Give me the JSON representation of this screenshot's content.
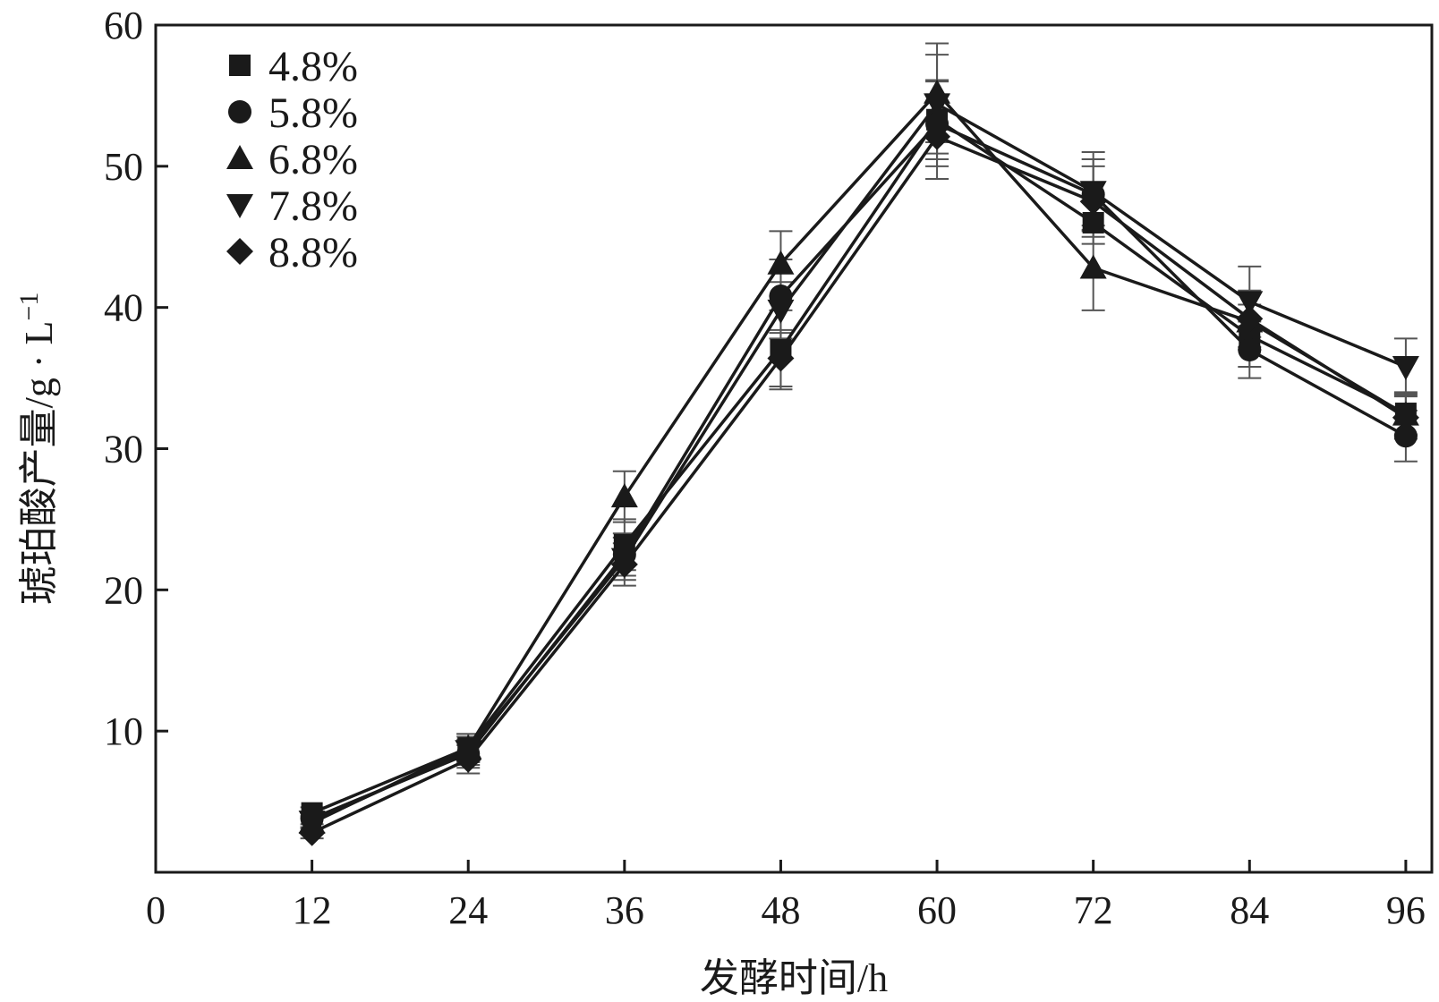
{
  "chart_data": {
    "type": "line",
    "title": "",
    "xlabel": "发酵时间/h",
    "ylabel": "琥珀酸产量/g · L",
    "ylabel_superscript": "−1",
    "x_tick_labels": [
      "0",
      "12",
      "24",
      "36",
      "48",
      "60",
      "72",
      "84",
      "96"
    ],
    "y_tick_labels": [
      "10",
      "20",
      "30",
      "40",
      "50",
      "60"
    ],
    "xlim": [
      0,
      98
    ],
    "ylim": [
      0,
      60
    ],
    "grid": false,
    "legend_position": "top-left",
    "x": [
      12,
      24,
      36,
      48,
      60,
      72,
      84,
      96
    ],
    "series": [
      {
        "name": "4.8%",
        "marker": "square",
        "values": [
          4.2,
          8.8,
          23.2,
          37.0,
          53.3,
          46.0,
          38.0,
          32.5
        ],
        "errors": [
          0.4,
          1.0,
          1.8,
          2.8,
          2.8,
          1.5,
          2.2,
          1.5
        ]
      },
      {
        "name": "5.8%",
        "marker": "circle",
        "values": [
          3.8,
          8.4,
          22.5,
          40.8,
          53.0,
          48.0,
          37.0,
          30.9
        ],
        "errors": [
          0.4,
          1.0,
          1.5,
          2.6,
          3.0,
          2.5,
          2.0,
          1.8
        ]
      },
      {
        "name": "6.8%",
        "marker": "triangle-up",
        "values": [
          3.5,
          8.8,
          26.6,
          43.1,
          55.2,
          42.8,
          39.0,
          32.4
        ],
        "errors": [
          0.4,
          1.0,
          1.8,
          2.3,
          3.5,
          3.0,
          2.0,
          1.5
        ]
      },
      {
        "name": "7.8%",
        "marker": "triangle-down",
        "values": [
          3.6,
          8.6,
          22.2,
          39.8,
          54.4,
          48.2,
          40.4,
          35.8
        ],
        "errors": [
          0.4,
          1.0,
          1.5,
          2.0,
          3.5,
          2.8,
          2.5,
          2.0
        ]
      },
      {
        "name": "8.8%",
        "marker": "diamond",
        "values": [
          2.8,
          8.0,
          21.8,
          36.4,
          52.1,
          47.5,
          39.2,
          32.2
        ],
        "errors": [
          0.4,
          1.0,
          1.5,
          2.0,
          3.0,
          2.5,
          2.0,
          1.5
        ]
      }
    ]
  }
}
